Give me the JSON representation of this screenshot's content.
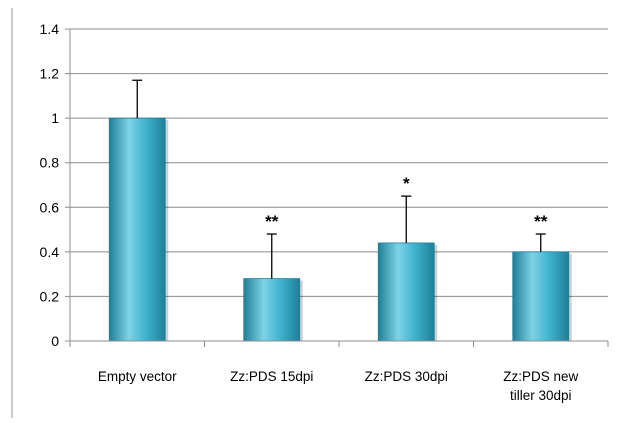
{
  "chart_data": {
    "type": "bar",
    "title": "",
    "xlabel": "",
    "ylabel": "",
    "categories": [
      [
        "Empty vector"
      ],
      [
        "Zz:PDS 15dpi"
      ],
      [
        "Zz:PDS 30dpi"
      ],
      [
        "Zz:PDS new",
        "tiller 30dpi"
      ]
    ],
    "values": [
      1.0,
      0.28,
      0.44,
      0.4
    ],
    "error_upper": [
      0.17,
      0.2,
      0.21,
      0.08
    ],
    "significance": [
      "",
      "**",
      "*",
      "**"
    ],
    "ylim": [
      0,
      1.4
    ],
    "yticks": [
      0,
      0.2,
      0.4,
      0.6,
      0.8,
      1,
      1.2,
      1.4
    ],
    "ytick_labels": [
      "0",
      "0.2",
      "0.4",
      "0.6",
      "0.8",
      "1",
      "1.2",
      "1.4"
    ],
    "grid": true,
    "legend": "none",
    "colors": {
      "bar_light": "#7dd3e6",
      "bar_mid": "#3fb3cf",
      "bar_dark": "#1f7f98",
      "grid": "#8c8c8c",
      "axis": "#8c8c8c"
    }
  }
}
